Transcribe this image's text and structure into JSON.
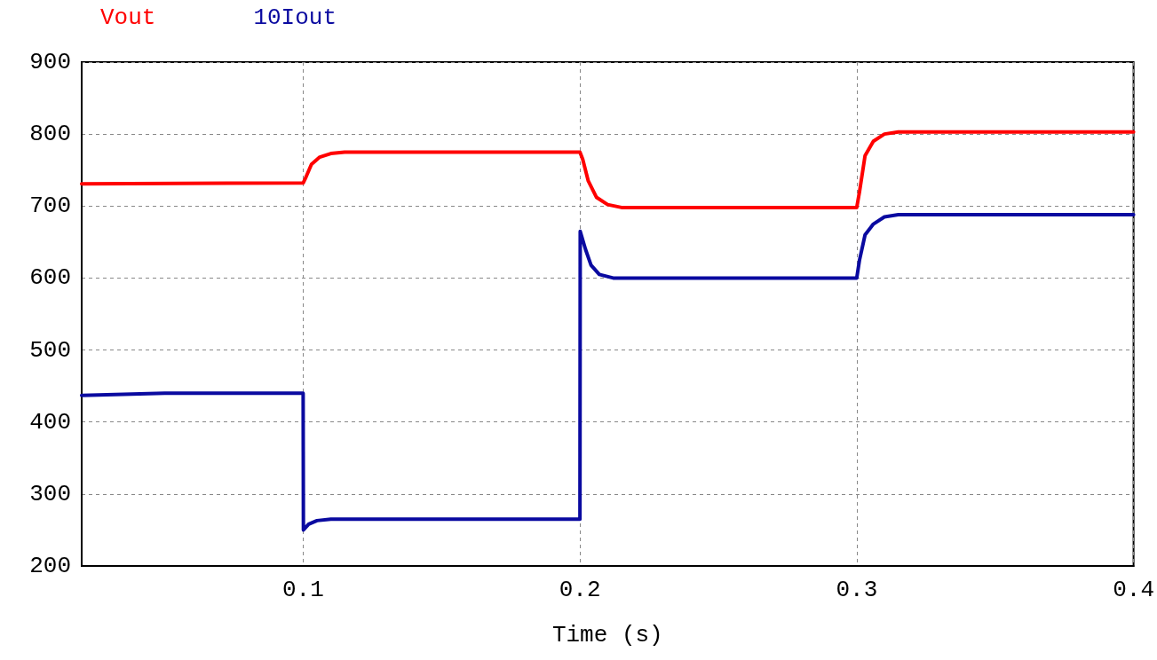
{
  "chart_data": {
    "type": "line",
    "xlabel": "Time (s)",
    "xlim": [
      0.02,
      0.4
    ],
    "xticks": [
      0.1,
      0.2,
      0.3,
      0.4
    ],
    "ylim": [
      200,
      900
    ],
    "yticks": [
      200,
      300,
      400,
      500,
      600,
      700,
      800,
      900
    ],
    "grid": true,
    "legend": "top left",
    "marker": "none",
    "line_style": "solid",
    "series": [
      {
        "name": "Vout",
        "color": "#ff0000",
        "x": [
          0.02,
          0.1,
          0.101,
          0.103,
          0.106,
          0.11,
          0.115,
          0.2,
          0.201,
          0.203,
          0.206,
          0.21,
          0.215,
          0.3,
          0.301,
          0.303,
          0.306,
          0.31,
          0.315,
          0.4
        ],
        "values": [
          731,
          732,
          740,
          758,
          768,
          773,
          775,
          775,
          765,
          735,
          712,
          702,
          698,
          698,
          720,
          770,
          790,
          800,
          803,
          803
        ]
      },
      {
        "name": "10Iout",
        "color": "#0a0aa0",
        "x": [
          0.02,
          0.05,
          0.1,
          0.1001,
          0.102,
          0.105,
          0.11,
          0.2,
          0.2001,
          0.202,
          0.204,
          0.207,
          0.212,
          0.3,
          0.301,
          0.303,
          0.306,
          0.31,
          0.315,
          0.4
        ],
        "values": [
          437,
          440,
          440,
          250,
          258,
          263,
          265,
          265,
          665,
          640,
          618,
          605,
          600,
          600,
          625,
          660,
          675,
          685,
          688,
          688
        ]
      }
    ]
  }
}
